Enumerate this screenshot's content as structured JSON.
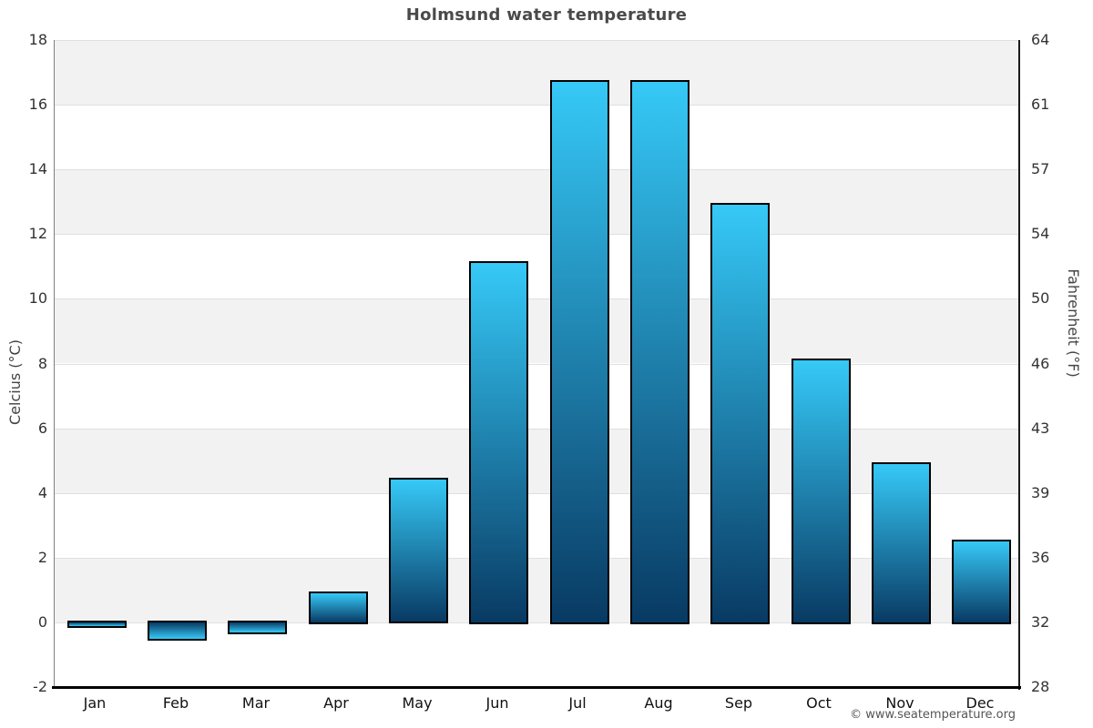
{
  "page": {
    "attribution": "© www.seatemperature.org"
  },
  "chart_data": {
    "type": "bar",
    "title": "Holmsund water temperature",
    "categories": [
      "Jan",
      "Feb",
      "Mar",
      "Apr",
      "May",
      "Jun",
      "Jul",
      "Aug",
      "Sep",
      "Oct",
      "Nov",
      "Dec"
    ],
    "values": [
      -0.1,
      -0.5,
      -0.3,
      0.9,
      4.4,
      11.1,
      16.7,
      16.7,
      12.9,
      8.1,
      4.9,
      2.5
    ],
    "xlabel": "",
    "ylabel_left": "Celcius (°C)",
    "ylabel_right": "Fahrenheit (°F)",
    "ylim": [
      -2,
      18
    ],
    "yticks_celsius": [
      18,
      16,
      14,
      12,
      10,
      8,
      6,
      4,
      2,
      0,
      -2
    ],
    "yticks_fahrenheit": [
      64,
      61,
      57,
      54,
      50,
      46,
      43,
      39,
      36,
      32,
      28
    ],
    "grid": "horizontal alternating bands, gridline every 2°C",
    "legend": "none",
    "colors": {
      "bar_gradient_top": "#36c9f7",
      "bar_gradient_bottom": "#083a63",
      "bar_border": "#000000",
      "band_fill": "#f2f2f2",
      "gridline": "#e0e0e0",
      "title_text": "#4a4a4a",
      "tick_text": "#333333",
      "axis_title_text": "#444444",
      "attribution_text": "#555555"
    }
  }
}
